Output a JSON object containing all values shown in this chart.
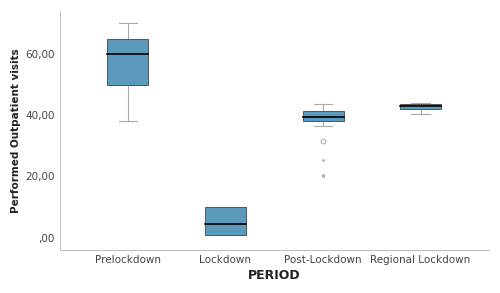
{
  "categories": [
    "Prelockdown",
    "Lockdown",
    "Post-Lockdown",
    "Regional Lockdown"
  ],
  "xlabel": "PERIOD",
  "ylabel": "Performed Outpatient visits",
  "ytick_labels": [
    ",00",
    "20,00",
    "40,00",
    "60,00"
  ],
  "ytick_values": [
    0,
    20,
    40,
    60
  ],
  "ylim": [
    -4,
    74
  ],
  "xlim": [
    0.3,
    4.7
  ],
  "box_color": "#5b9abd",
  "median_color": "#000000",
  "whisker_color": "#aaaaaa",
  "cap_color": "#aaaaaa",
  "flier_color": "#aaaaaa",
  "boxes": [
    {
      "label": "Prelockdown",
      "q1": 50.0,
      "median": 60.0,
      "q3": 65.0,
      "whisker_low": 38.0,
      "whisker_high": 70.0,
      "outliers_circle": [],
      "outliers_star": []
    },
    {
      "label": "Lockdown",
      "q1": 1.0,
      "median": 4.5,
      "q3": 10.0,
      "whisker_low": 1.0,
      "whisker_high": 10.0,
      "outliers_circle": [],
      "outliers_star": []
    },
    {
      "label": "Post-Lockdown",
      "q1": 38.0,
      "median": 39.5,
      "q3": 41.5,
      "whisker_low": 36.5,
      "whisker_high": 43.5,
      "outliers_circle": [
        31.5
      ],
      "outliers_star": [
        25.5,
        20.5,
        20.0
      ]
    },
    {
      "label": "Regional Lockdown",
      "q1": 42.0,
      "median": 43.0,
      "q3": 43.5,
      "whisker_low": 40.5,
      "whisker_high": 44.0,
      "outliers_circle": [],
      "outliers_star": []
    }
  ]
}
